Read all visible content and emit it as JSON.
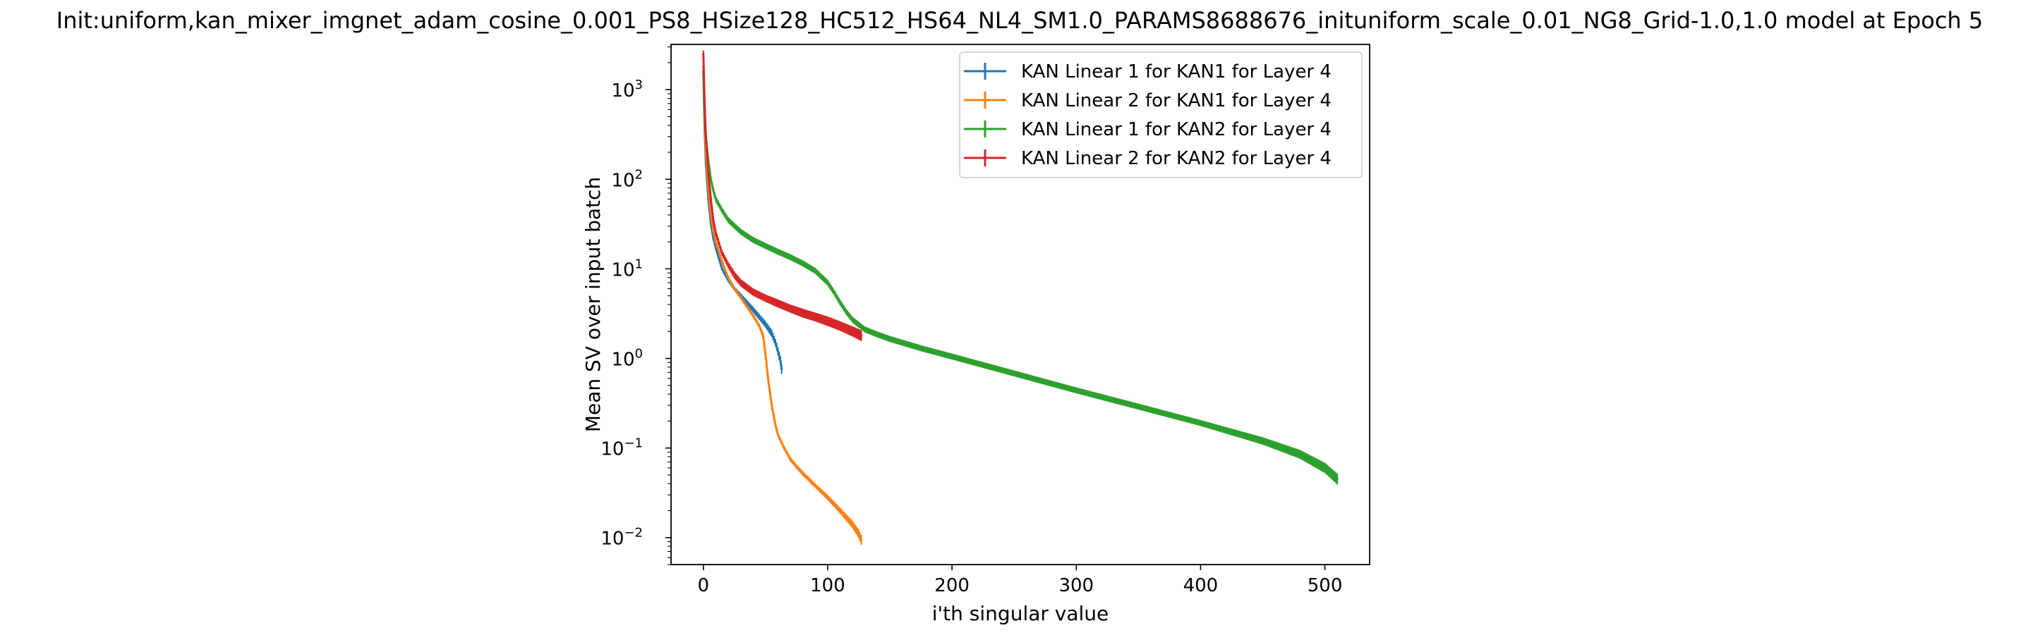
{
  "chart_data": {
    "type": "line",
    "title": "Init:uniform,kan_mixer_imgnet_adam_cosine_0.001_PS8_HSize128_HC512_HS64_NL4_SM1.0_PARAMS8688676_inituniform_scale_0.01_NG8_Grid-1.0,1.0 model at Epoch 5",
    "xlabel": "i'th singular value",
    "ylabel": "Mean SV over input batch",
    "xlim": [
      -26,
      536
    ],
    "ylim": [
      0.005,
      3200
    ],
    "yscale": "log",
    "grid": false,
    "legend_position": "top-right",
    "x_ticks": [
      {
        "value": 0,
        "label": "0"
      },
      {
        "value": 100,
        "label": "100"
      },
      {
        "value": 200,
        "label": "200"
      },
      {
        "value": 300,
        "label": "300"
      },
      {
        "value": 400,
        "label": "400"
      },
      {
        "value": 500,
        "label": "500"
      }
    ],
    "y_ticks": [
      {
        "value": 0.01,
        "base": "10",
        "exp": "−2"
      },
      {
        "value": 0.1,
        "base": "10",
        "exp": "−1"
      },
      {
        "value": 1,
        "base": "10",
        "exp": "0"
      },
      {
        "value": 10,
        "base": "10",
        "exp": "1"
      },
      {
        "value": 100,
        "base": "10",
        "exp": "2"
      },
      {
        "value": 1000,
        "base": "10",
        "exp": "3"
      }
    ],
    "series": [
      {
        "name": "KAN Linear 1 for KAN1 for Layer 4",
        "color": "#1f77b4",
        "x": [
          0,
          1,
          2,
          4,
          6,
          8,
          10,
          15,
          20,
          25,
          30,
          35,
          40,
          45,
          50,
          55,
          58,
          60,
          62,
          63
        ],
        "y": [
          1500,
          350,
          150,
          60,
          32,
          22,
          17,
          10,
          7.5,
          6,
          5,
          4.2,
          3.5,
          2.9,
          2.4,
          1.9,
          1.5,
          1.2,
          0.95,
          0.75
        ],
        "err": [
          0.08,
          0.06,
          0.05,
          0.05,
          0.05,
          0.05,
          0.05,
          0.05,
          0.06,
          0.06,
          0.07,
          0.07,
          0.08,
          0.08,
          0.09,
          0.1,
          0.1,
          0.11,
          0.12,
          0.12
        ]
      },
      {
        "name": "KAN Linear 2 for KAN1 for Layer 4",
        "color": "#ff7f0e",
        "x": [
          0,
          1,
          2,
          4,
          6,
          8,
          10,
          15,
          20,
          25,
          30,
          35,
          40,
          45,
          48,
          50,
          52,
          55,
          58,
          60,
          65,
          70,
          75,
          80,
          90,
          100,
          110,
          120,
          125,
          127
        ],
        "y": [
          1800,
          450,
          200,
          80,
          40,
          26,
          20,
          12,
          8,
          6,
          4.8,
          3.8,
          3,
          2.3,
          1.8,
          1.1,
          0.6,
          0.3,
          0.18,
          0.14,
          0.1,
          0.075,
          0.062,
          0.052,
          0.038,
          0.028,
          0.02,
          0.014,
          0.011,
          0.0095
        ],
        "err": [
          0.05,
          0.05,
          0.05,
          0.05,
          0.05,
          0.05,
          0.05,
          0.05,
          0.05,
          0.05,
          0.05,
          0.05,
          0.05,
          0.06,
          0.08,
          0.1,
          0.1,
          0.1,
          0.08,
          0.06,
          0.06,
          0.06,
          0.06,
          0.06,
          0.06,
          0.07,
          0.08,
          0.1,
          0.12,
          0.14
        ]
      },
      {
        "name": "KAN Linear 1 for KAN2 for Layer 4",
        "color": "#2ca02c",
        "x": [
          0,
          1,
          2,
          4,
          6,
          8,
          10,
          15,
          20,
          30,
          40,
          50,
          60,
          70,
          80,
          90,
          100,
          105,
          110,
          115,
          120,
          130,
          140,
          150,
          175,
          200,
          250,
          300,
          350,
          400,
          450,
          480,
          500,
          510
        ],
        "y": [
          1600,
          500,
          300,
          160,
          100,
          75,
          60,
          45,
          35,
          26,
          21,
          18,
          15.5,
          13.5,
          11.5,
          9.5,
          7,
          5.5,
          4.2,
          3.3,
          2.7,
          2.1,
          1.85,
          1.65,
          1.3,
          1.05,
          0.68,
          0.44,
          0.29,
          0.19,
          0.12,
          0.085,
          0.06,
          0.045
        ],
        "err": [
          0.15,
          0.1,
          0.1,
          0.08,
          0.08,
          0.08,
          0.08,
          0.08,
          0.08,
          0.08,
          0.08,
          0.08,
          0.08,
          0.08,
          0.08,
          0.08,
          0.08,
          0.08,
          0.08,
          0.08,
          0.08,
          0.08,
          0.08,
          0.08,
          0.08,
          0.08,
          0.08,
          0.08,
          0.08,
          0.08,
          0.1,
          0.12,
          0.14,
          0.15
        ]
      },
      {
        "name": "KAN Linear 2 for KAN2 for Layer 4",
        "color": "#d62728",
        "x": [
          0,
          1,
          2,
          4,
          6,
          8,
          10,
          15,
          20,
          25,
          30,
          40,
          50,
          60,
          70,
          80,
          90,
          100,
          110,
          120,
          127
        ],
        "y": [
          2500,
          700,
          300,
          120,
          60,
          35,
          25,
          15,
          11,
          8.5,
          7,
          5.5,
          4.7,
          4.1,
          3.6,
          3.2,
          2.9,
          2.6,
          2.3,
          2,
          1.8
        ],
        "err": [
          0.1,
          0.08,
          0.07,
          0.07,
          0.07,
          0.08,
          0.08,
          0.08,
          0.09,
          0.1,
          0.1,
          0.1,
          0.1,
          0.11,
          0.11,
          0.12,
          0.12,
          0.13,
          0.13,
          0.14,
          0.15
        ]
      }
    ]
  }
}
